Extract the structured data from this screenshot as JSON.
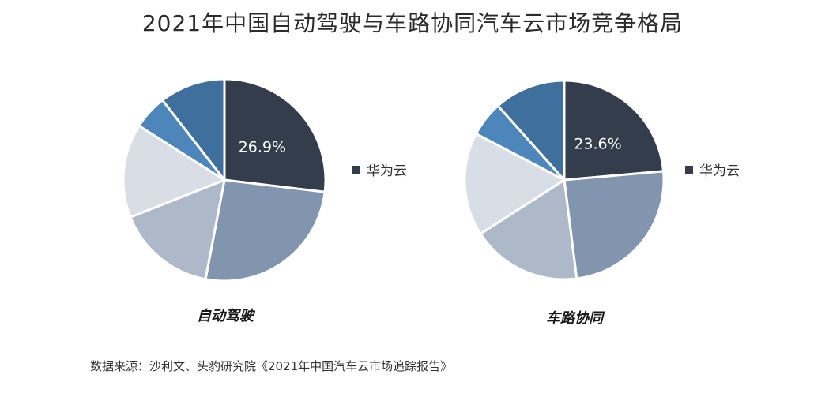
{
  "title": "2021年中国自动驾驶与车路协同汽车云市场竞争格局",
  "source": "数据来源：沙利文、头豹研究院《2021年中国汽车云市场追踪报告》",
  "chart_data": [
    {
      "type": "pie",
      "label": "自动驾驶",
      "values": [
        26.9,
        26.1,
        16.0,
        15.0,
        5.5,
        10.5
      ],
      "value_labels": [
        "26.9%",
        "",
        "",
        "",
        "",
        ""
      ],
      "colors": [
        "#333d4c",
        "#8196ae",
        "#adb8c8",
        "#d8dde6",
        "#4d86ba",
        "#3f6f9c"
      ],
      "legend": [
        {
          "name": "华为云",
          "color": "#333d4c"
        }
      ],
      "start": "12 o'clock, clockwise"
    },
    {
      "type": "pie",
      "label": "车路协同",
      "values": [
        23.6,
        24.4,
        17.9,
        16.8,
        5.7,
        11.6
      ],
      "value_labels": [
        "23.6%",
        "",
        "",
        "",
        "",
        ""
      ],
      "colors": [
        "#333d4c",
        "#8196ae",
        "#adb8c8",
        "#d8dde6",
        "#4d86ba",
        "#3f6f9c"
      ],
      "legend": [
        {
          "name": "华为云",
          "color": "#333d4c"
        }
      ],
      "start": "12 o'clock, clockwise"
    }
  ]
}
